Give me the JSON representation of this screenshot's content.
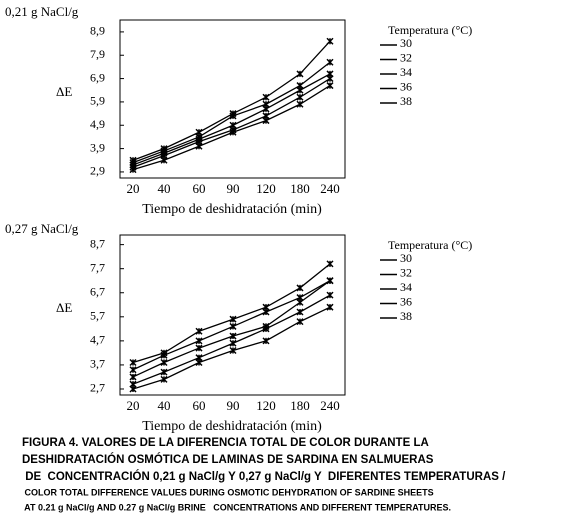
{
  "chart_data": [
    {
      "type": "line",
      "subtitle": "0,21 g NaCl/g",
      "y_label": "ΔE",
      "x_label": "Tiempo de deshidratación (min)",
      "legend_title": "Temperatura (°C)",
      "legend": "right",
      "categories": [
        "20",
        "40",
        "60",
        "90",
        "120",
        "180",
        "240"
      ],
      "ylim": [
        2.64,
        9.41
      ],
      "yticks": [
        {
          "value": 2.9,
          "label": "2,9"
        },
        {
          "value": 3.9,
          "label": "3,9"
        },
        {
          "value": 4.9,
          "label": "4,9"
        },
        {
          "value": 5.9,
          "label": "5,9"
        },
        {
          "value": 6.9,
          "label": "6,9"
        },
        {
          "value": 7.9,
          "label": "7,9"
        },
        {
          "value": 8.9,
          "label": "8,9"
        }
      ],
      "series": [
        {
          "name": "30",
          "color": "#000000",
          "values": [
            3.0,
            3.4,
            4.0,
            4.6,
            5.1,
            5.8,
            6.6
          ]
        },
        {
          "name": "32",
          "color": "#000000",
          "values": [
            3.1,
            3.6,
            4.2,
            4.7,
            5.3,
            6.1,
            6.9
          ]
        },
        {
          "name": "34",
          "color": "#000000",
          "values": [
            3.2,
            3.7,
            4.3,
            4.9,
            5.6,
            6.4,
            7.1
          ]
        },
        {
          "name": "36",
          "color": "#000000",
          "values": [
            3.3,
            3.8,
            4.4,
            5.3,
            5.8,
            6.6,
            7.6
          ]
        },
        {
          "name": "38",
          "color": "#000000",
          "values": [
            3.4,
            3.9,
            4.6,
            5.4,
            6.1,
            7.1,
            8.5
          ]
        }
      ]
    },
    {
      "type": "line",
      "subtitle": "0,27 g NaCl/g",
      "y_label": "ΔE",
      "x_label": "Tiempo de deshidratación (min)",
      "legend_title": "Temperatura (°C)",
      "legend": "right",
      "categories": [
        "20",
        "40",
        "60",
        "90",
        "120",
        "180",
        "240"
      ],
      "ylim": [
        2.45,
        9.1
      ],
      "yticks": [
        {
          "value": 2.7,
          "label": "2,7"
        },
        {
          "value": 3.7,
          "label": "3,7"
        },
        {
          "value": 4.7,
          "label": "4,7"
        },
        {
          "value": 5.7,
          "label": "5,7"
        },
        {
          "value": 6.7,
          "label": "6,7"
        },
        {
          "value": 7.7,
          "label": "7,7"
        },
        {
          "value": 8.7,
          "label": "8,7"
        }
      ],
      "series": [
        {
          "name": "30",
          "color": "#000000",
          "values": [
            2.7,
            3.1,
            3.8,
            4.3,
            4.7,
            5.5,
            6.1
          ]
        },
        {
          "name": "32",
          "color": "#000000",
          "values": [
            2.9,
            3.4,
            4.0,
            4.6,
            5.2,
            5.9,
            6.6
          ]
        },
        {
          "name": "34",
          "color": "#000000",
          "values": [
            3.2,
            3.8,
            4.4,
            4.9,
            5.3,
            6.3,
            7.2
          ]
        },
        {
          "name": "36",
          "color": "#000000",
          "values": [
            3.5,
            4.1,
            4.7,
            5.3,
            5.9,
            6.5,
            7.2
          ]
        },
        {
          "name": "38",
          "color": "#000000",
          "values": [
            3.8,
            4.2,
            5.1,
            5.6,
            6.1,
            6.9,
            7.9
          ]
        }
      ]
    }
  ],
  "caption": [
    "FIGURA 4. VALORES DE LA DIFERENCIA TOTAL DE COLOR DURANTE LA",
    "DESHIDRATACIÓN  OSMÓTICA DE LAMINAS DE SARDINA EN SALMUERAS",
    " DE  CONCENTRACIÓN 0,21 g NaCl/g Y 0,27 g NaCl/g Y  DIFERENTES TEMPERATURAS /",
    " COLOR TOTAL DIFFERENCE VALUES DURING OSMOTIC DEHYDRATION OF SARDINE SHEETS",
    " AT 0.21 g NaCl/g AND 0.27 g NaCl/g BRINE   CONCENTRATIONS AND DIFFERENT TEMPERATURES."
  ]
}
